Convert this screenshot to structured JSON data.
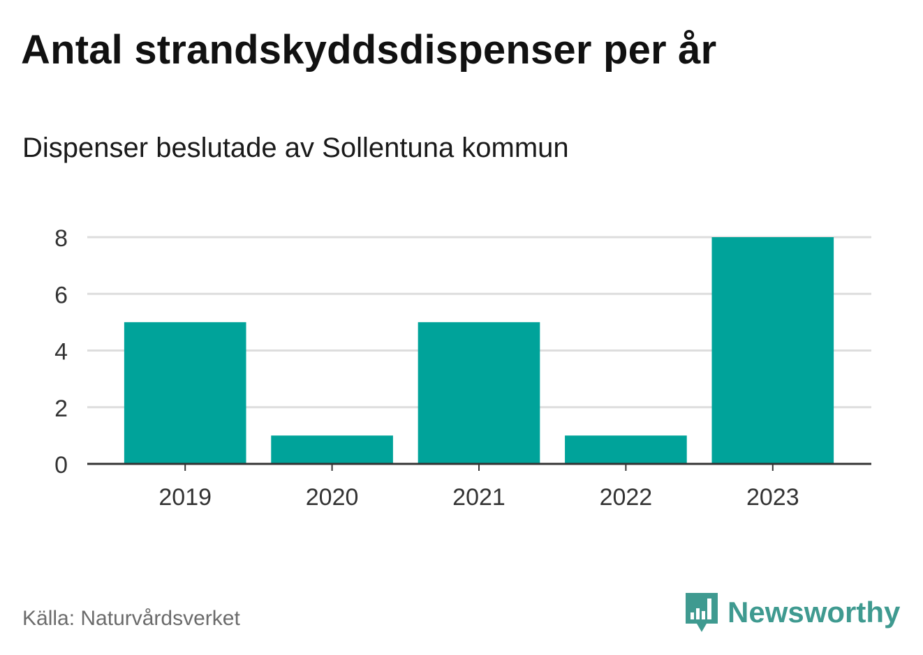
{
  "title": "Antal strandskyddsdispenser per år",
  "subtitle": "Dispenser beslutade av Sollentuna kommun",
  "source": "Källa: Naturvårdsverket",
  "logo": {
    "text": "Newsworthy",
    "icon": "bar-chart-speech-bubble-icon",
    "color": "#3f9a90"
  },
  "chart_data": {
    "type": "bar",
    "categories": [
      "2019",
      "2020",
      "2021",
      "2022",
      "2023"
    ],
    "values": [
      5,
      1,
      5,
      1,
      8
    ],
    "ylim": [
      0,
      8
    ],
    "yticks": [
      0,
      2,
      4,
      6,
      8
    ],
    "xlabel": "",
    "ylabel": "",
    "grid": true,
    "bar_color": "#00a39a",
    "grid_color": "#dddddd",
    "axis_color": "#333333"
  }
}
